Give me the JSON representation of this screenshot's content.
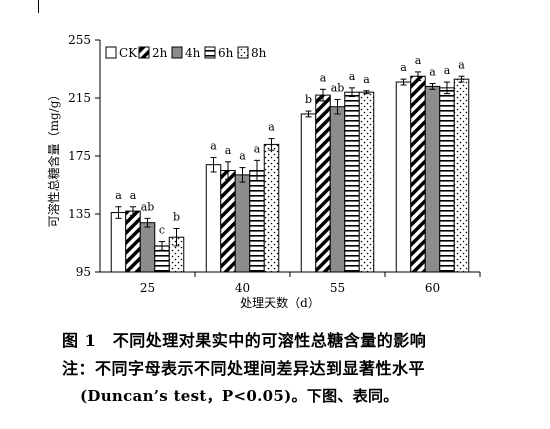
{
  "chart_data": {
    "type": "bar",
    "categories": [
      "25",
      "40",
      "55",
      "60"
    ],
    "xlabel": "处理天数（d）",
    "ylabel": "可溶性总糖含量（mg/g）",
    "ylim": [
      95,
      255
    ],
    "yticks": [
      "95",
      "135",
      "175",
      "215",
      "255"
    ],
    "grid": false,
    "legend_position": "top-left",
    "series": [
      {
        "name": "CK",
        "pattern": "solid-white",
        "values": [
          136,
          169,
          204,
          226
        ],
        "errors": [
          4,
          5,
          2,
          2
        ],
        "letters": [
          "a",
          "a",
          "b",
          "a"
        ]
      },
      {
        "name": "2h",
        "pattern": "diagonal-stripes",
        "values": [
          137,
          165,
          217,
          230
        ],
        "errors": [
          3,
          6,
          4,
          3
        ],
        "letters": [
          "a",
          "a",
          "a",
          "a"
        ]
      },
      {
        "name": "4h",
        "pattern": "solid-gray",
        "values": [
          129,
          162,
          209,
          223
        ],
        "errors": [
          3,
          5,
          5,
          2
        ],
        "letters": [
          "ab",
          "a",
          "ab",
          "a"
        ]
      },
      {
        "name": "6h",
        "pattern": "horizontal-stripes",
        "values": [
          113,
          165,
          219,
          222
        ],
        "errors": [
          3,
          7,
          3,
          4
        ],
        "letters": [
          "c",
          "a",
          "a",
          "a"
        ]
      },
      {
        "name": "8h",
        "pattern": "dots",
        "values": [
          119,
          183,
          219,
          228
        ],
        "errors": [
          6,
          4,
          1,
          2
        ],
        "letters": [
          "b",
          "a",
          "a",
          "a"
        ]
      }
    ],
    "colors": {
      "gray_fill": "#8c8c8c",
      "ink": "#000000"
    }
  },
  "caption": {
    "line1": "图 1　不同处理对果实中的可溶性总糖含量的影响",
    "line2": "注：不同字母表示不同处理间差异达到显著性水平",
    "line3": "(Duncan’s test，P<0.05)。下图、表同。"
  }
}
